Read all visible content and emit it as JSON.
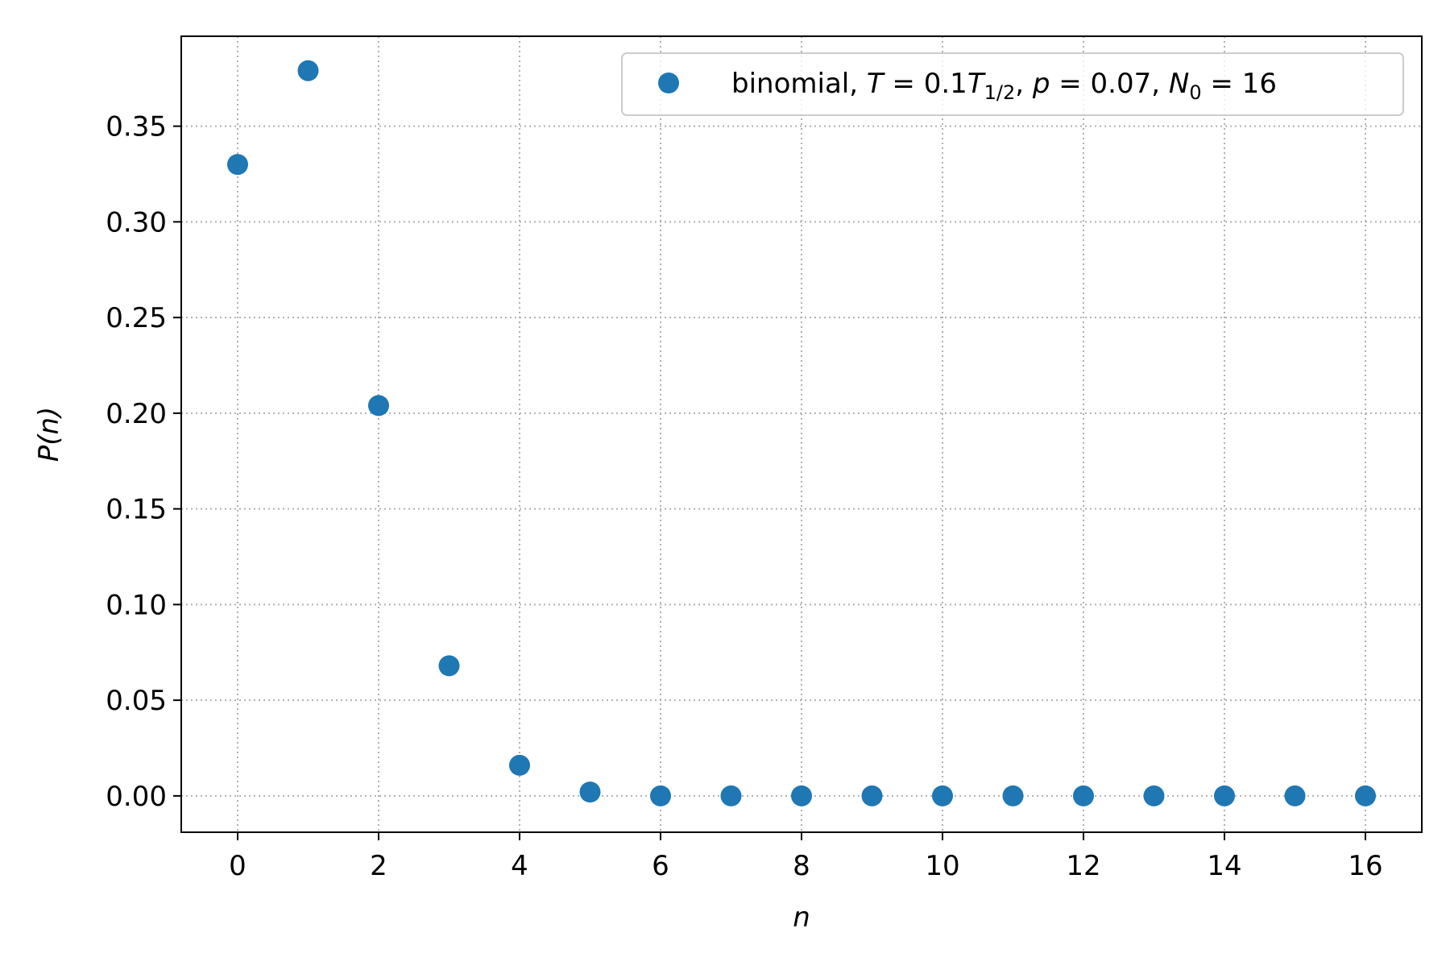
{
  "chart_data": {
    "type": "scatter",
    "title": "",
    "xlabel": "n",
    "ylabel": "P(n)",
    "xlim": [
      -0.8,
      16.8
    ],
    "ylim": [
      -0.019,
      0.397
    ],
    "x_ticks": [
      0,
      2,
      4,
      6,
      8,
      10,
      12,
      14,
      16
    ],
    "x_tick_labels": [
      "0",
      "2",
      "4",
      "6",
      "8",
      "10",
      "12",
      "14",
      "16"
    ],
    "y_ticks": [
      0,
      0.05,
      0.1,
      0.15,
      0.2,
      0.25,
      0.3,
      0.35
    ],
    "y_tick_labels": [
      "0.00",
      "0.05",
      "0.10",
      "0.15",
      "0.20",
      "0.25",
      "0.30",
      "0.35"
    ],
    "grid": true,
    "grid_style": "dotted",
    "legend_position": "top-right",
    "series": [
      {
        "name": "binomial, T = 0.1T1/2,  p = 0.07,  N0 = 16",
        "color": "#1f77b4",
        "x": [
          0,
          1,
          2,
          3,
          4,
          5,
          6,
          7,
          8,
          9,
          10,
          11,
          12,
          13,
          14,
          15,
          16
        ],
        "y": [
          0.33,
          0.379,
          0.204,
          0.068,
          0.016,
          0.002,
          0.0,
          0.0,
          0.0,
          0.0,
          0.0,
          0.0,
          0.0,
          0.0,
          0.0,
          0.0,
          0.0
        ]
      }
    ],
    "legend": {
      "prefix": "binomial, ",
      "T_symbol": "T",
      "T_eq": " = 0.1",
      "T_half_symbol": "T",
      "T_half_sub": "1/2",
      "p_symbol": "p",
      "p_eq": " = 0.07,",
      "N_symbol": "N",
      "N_sub": "0",
      "N_eq": " = 16"
    }
  }
}
